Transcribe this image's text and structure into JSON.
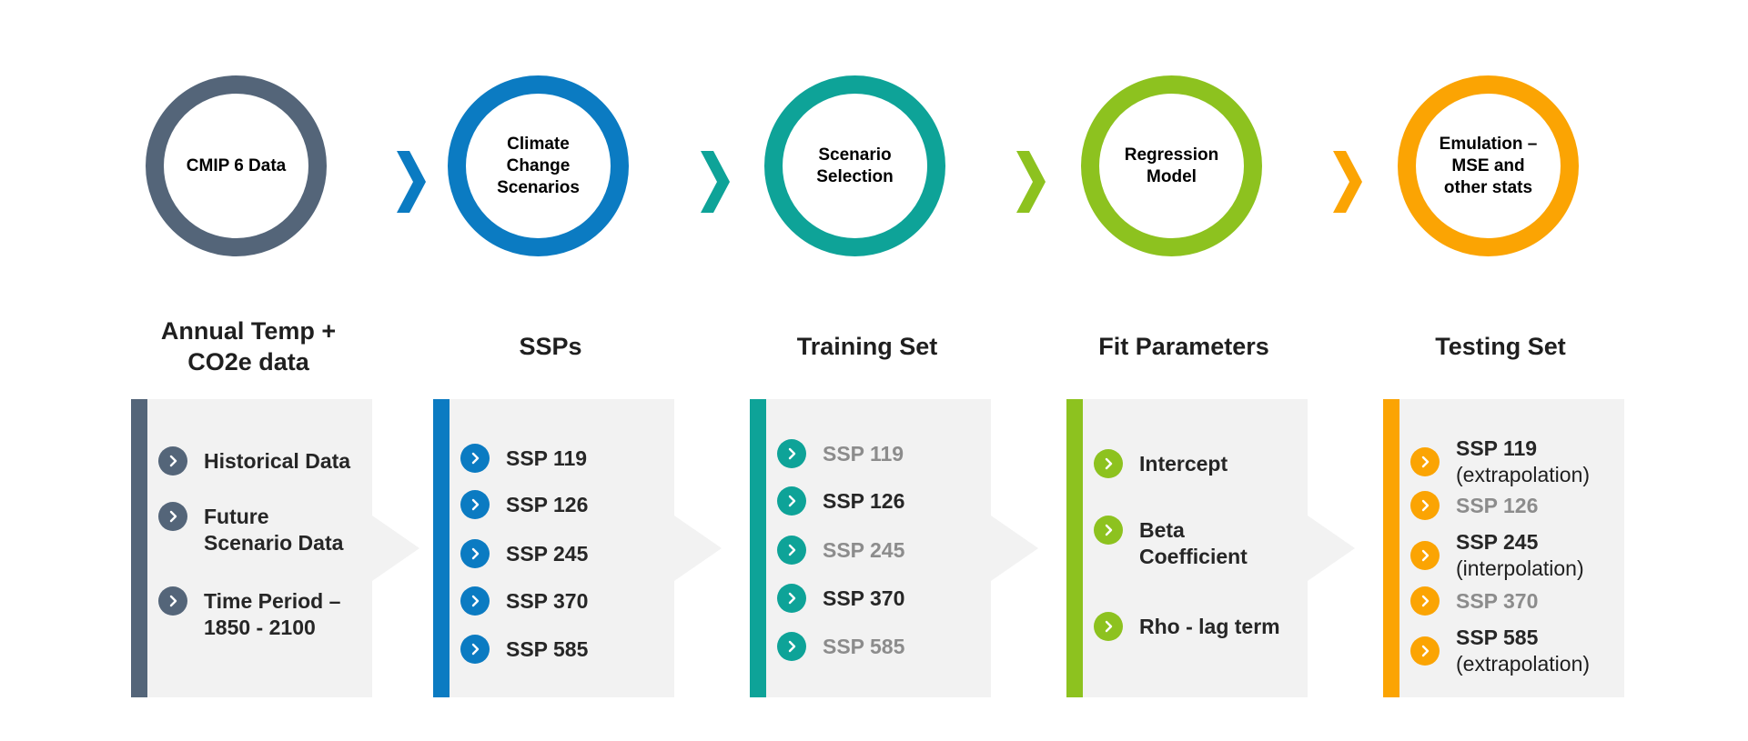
{
  "colors": {
    "slate": "#546579",
    "blue": "#0b7bc2",
    "teal": "#0ea398",
    "lime": "#8dc21f",
    "orange": "#fba403",
    "panel_bg": "#f2f2f2",
    "muted_text": "#8c8c8c"
  },
  "stages": [
    {
      "circle_label": "CMIP 6 Data",
      "heading": "Annual Temp +\nCO2e data",
      "items": [
        {
          "text": "Historical Data",
          "note": "",
          "muted": false
        },
        {
          "text": "Future\nScenario Data",
          "note": "",
          "muted": false
        },
        {
          "text": "Time Period –\n1850 - 2100",
          "note": "",
          "muted": false
        }
      ]
    },
    {
      "circle_label": "Climate\nChange\nScenarios",
      "heading": "SSPs",
      "items": [
        {
          "text": "SSP 119",
          "note": "",
          "muted": false
        },
        {
          "text": "SSP 126",
          "note": "",
          "muted": false
        },
        {
          "text": "SSP 245",
          "note": "",
          "muted": false
        },
        {
          "text": "SSP 370",
          "note": "",
          "muted": false
        },
        {
          "text": "SSP 585",
          "note": "",
          "muted": false
        }
      ]
    },
    {
      "circle_label": "Scenario\nSelection",
      "heading": "Training Set",
      "items": [
        {
          "text": "SSP 119",
          "note": "",
          "muted": true
        },
        {
          "text": "SSP 126",
          "note": "",
          "muted": false
        },
        {
          "text": "SSP 245",
          "note": "",
          "muted": true
        },
        {
          "text": "SSP 370",
          "note": "",
          "muted": false
        },
        {
          "text": "SSP 585",
          "note": "",
          "muted": true
        }
      ]
    },
    {
      "circle_label": "Regression\nModel",
      "heading": "Fit Parameters",
      "items": [
        {
          "text": "Intercept",
          "note": "",
          "muted": false
        },
        {
          "text": "Beta\nCoefficient",
          "note": "",
          "muted": false
        },
        {
          "text": "Rho - lag term",
          "note": "",
          "muted": false
        }
      ]
    },
    {
      "circle_label": "Emulation –\nMSE and\nother stats",
      "heading": "Testing Set",
      "items": [
        {
          "text": "SSP 119",
          "note": "(extrapolation)",
          "muted": false
        },
        {
          "text": "SSP 126",
          "note": "",
          "muted": true
        },
        {
          "text": "SSP 245",
          "note": "(interpolation)",
          "muted": false
        },
        {
          "text": "SSP 370",
          "note": "",
          "muted": true
        },
        {
          "text": "SSP 585",
          "note": "(extrapolation)",
          "muted": false
        }
      ]
    }
  ]
}
